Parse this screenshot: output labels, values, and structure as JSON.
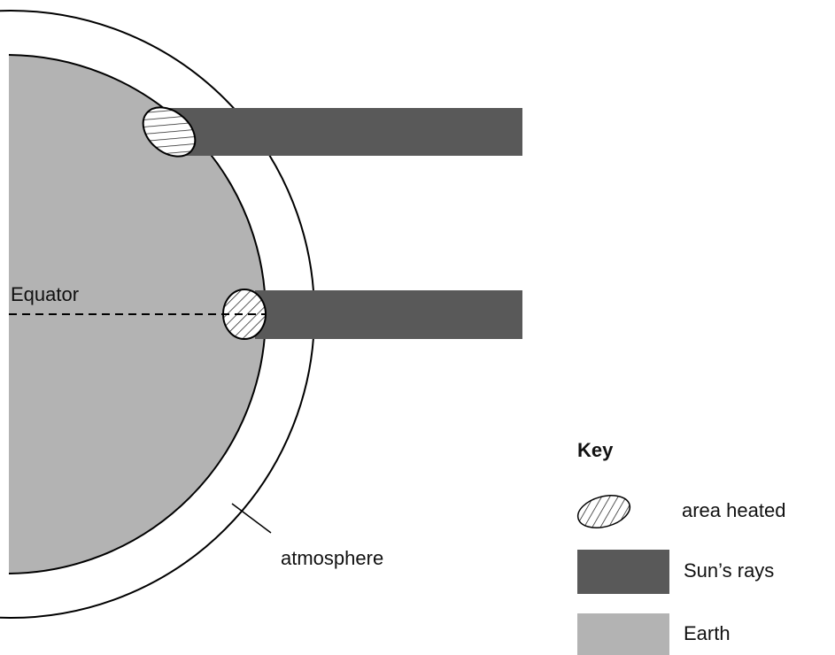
{
  "labels": {
    "equator": "Equator",
    "atmosphere": "atmosphere"
  },
  "key": {
    "title": "Key",
    "items": [
      "area heated",
      "Sun’s rays",
      "Earth"
    ]
  }
}
